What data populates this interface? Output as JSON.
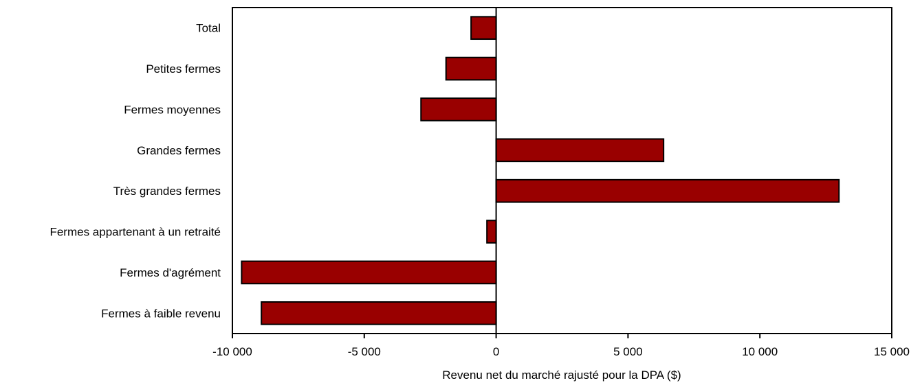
{
  "chart_data": {
    "type": "bar",
    "orientation": "horizontal",
    "categories": [
      "Total",
      "Petites fermes",
      "Fermes moyennes",
      "Grandes fermes",
      "Très grandes fermes",
      "Fermes appartenant à un retraité",
      "Fermes d'agrément",
      "Fermes à faible revenu"
    ],
    "values": [
      -950,
      -1900,
      -2850,
      6350,
      13000,
      -350,
      -9650,
      -8900
    ],
    "xlabel": "Revenu net du marché rajusté pour la DPA ($)",
    "ylabel": "",
    "xlim": [
      -10000,
      15000
    ],
    "x_ticks": [
      -10000,
      -5000,
      0,
      5000,
      10000,
      15000
    ],
    "x_tick_labels": [
      "-10 000",
      "-5 000",
      "0",
      "5 000",
      "10 000",
      "15 000"
    ],
    "grid": false,
    "legend": "none",
    "bar_color": "#990000",
    "bar_edge_color": "#000000"
  }
}
